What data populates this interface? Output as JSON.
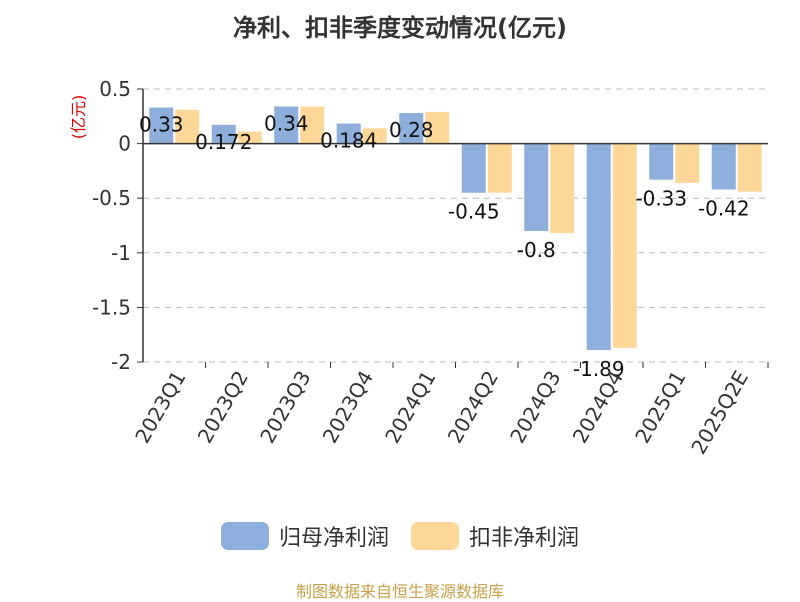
{
  "chart_data": {
    "type": "bar",
    "title": "净利、扣非季度变动情况(亿元)",
    "ylabel": "(亿元)",
    "xlabel": "",
    "categories": [
      "2023Q1",
      "2023Q2",
      "2023Q3",
      "2023Q4",
      "2024Q1",
      "2024Q2",
      "2024Q3",
      "2024Q4",
      "2025Q1",
      "2025Q2E"
    ],
    "ylim": [
      -2,
      0.5
    ],
    "yticks": [
      0.5,
      0,
      -0.5,
      -1,
      -1.5,
      -2
    ],
    "ytick_labels": [
      "0.5",
      "0",
      "-0.5",
      "-1",
      "-1.5",
      "-2"
    ],
    "grid": true,
    "legend_position": "bottom",
    "series": [
      {
        "name": "归母净利润",
        "color": "#8eaedc",
        "values": [
          0.33,
          0.172,
          0.34,
          0.184,
          0.28,
          -0.45,
          -0.8,
          -1.89,
          -0.33,
          -0.42
        ],
        "data_labels": [
          "0.33",
          "0.172",
          "0.34",
          "0.184",
          "0.28",
          "-0.45",
          "-0.8",
          "-1.89",
          "-0.33",
          "-0.42"
        ]
      },
      {
        "name": "扣非净利润",
        "color": "#fdd797",
        "values": [
          0.31,
          0.11,
          0.34,
          0.14,
          0.29,
          -0.45,
          -0.82,
          -1.87,
          -0.36,
          -0.44
        ]
      }
    ]
  },
  "source_note": "制图数据来自恒生聚源数据库"
}
